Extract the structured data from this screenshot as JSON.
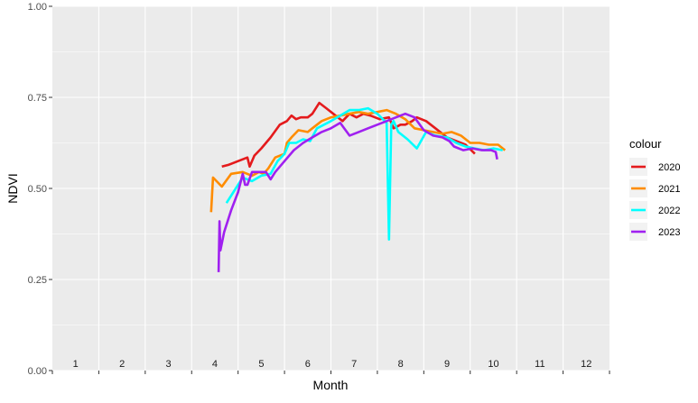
{
  "chart_data": {
    "type": "line",
    "title": "",
    "xlabel": "Month",
    "ylabel": "NDVI",
    "xlim": [
      0.5,
      12.5
    ],
    "ylim": [
      0,
      1
    ],
    "x_ticks": [
      1,
      2,
      3,
      4,
      5,
      6,
      7,
      8,
      9,
      10,
      11,
      12
    ],
    "x_tick_labels": [
      "1",
      "2",
      "3",
      "4",
      "5",
      "6",
      "7",
      "8",
      "9",
      "10",
      "11",
      "12"
    ],
    "y_ticks": [
      0,
      0.25,
      0.5,
      0.75,
      1
    ],
    "y_tick_labels": [
      "0.00",
      "0.25",
      "0.50",
      "0.75",
      "1.00"
    ],
    "grid": true,
    "legend": {
      "title": "colour",
      "position": "right"
    },
    "series": [
      {
        "name": "2020",
        "color": "#e41a1c",
        "x": [
          4.15,
          4.3,
          4.5,
          4.7,
          4.75,
          4.85,
          5.0,
          5.2,
          5.4,
          5.55,
          5.65,
          5.75,
          5.85,
          6.0,
          6.1,
          6.25,
          6.4,
          6.55,
          6.75,
          6.9,
          7.05,
          7.2,
          7.35,
          7.55,
          7.75,
          7.85,
          8.0,
          8.1,
          8.25,
          8.35,
          8.55,
          8.75,
          9.0,
          9.2,
          9.4,
          9.6
        ],
        "y": [
          0.56,
          0.565,
          0.575,
          0.585,
          0.56,
          0.59,
          0.61,
          0.64,
          0.675,
          0.685,
          0.7,
          0.69,
          0.695,
          0.695,
          0.705,
          0.735,
          0.72,
          0.705,
          0.685,
          0.705,
          0.695,
          0.705,
          0.7,
          0.69,
          0.695,
          0.665,
          0.675,
          0.675,
          0.685,
          0.695,
          0.685,
          0.665,
          0.64,
          0.63,
          0.62,
          0.595
        ]
      },
      {
        "name": "2021",
        "color": "#ff8c00",
        "x": [
          3.92,
          3.96,
          4.15,
          4.35,
          4.6,
          4.8,
          4.95,
          5.05,
          5.15,
          5.3,
          5.5,
          5.55,
          5.65,
          5.8,
          6.0,
          6.1,
          6.3,
          6.5,
          6.7,
          6.9,
          7.1,
          7.3,
          7.5,
          7.7,
          7.9,
          8.1,
          8.3,
          8.5,
          8.7,
          8.9,
          9.1,
          9.3,
          9.5,
          9.7,
          9.9,
          10.1,
          10.25
        ],
        "y": [
          0.435,
          0.53,
          0.505,
          0.54,
          0.545,
          0.535,
          0.545,
          0.54,
          0.555,
          0.585,
          0.595,
          0.625,
          0.64,
          0.66,
          0.655,
          0.665,
          0.685,
          0.695,
          0.7,
          0.705,
          0.71,
          0.705,
          0.71,
          0.715,
          0.705,
          0.69,
          0.665,
          0.66,
          0.655,
          0.65,
          0.655,
          0.645,
          0.625,
          0.625,
          0.62,
          0.62,
          0.605
        ]
      },
      {
        "name": "2022",
        "color": "#00ffff",
        "x": [
          4.25,
          4.45,
          4.6,
          4.8,
          5.0,
          5.2,
          5.35,
          5.5,
          5.6,
          5.75,
          5.9,
          6.05,
          6.2,
          6.35,
          6.5,
          6.7,
          6.9,
          7.1,
          7.3,
          7.5,
          7.7,
          7.75,
          7.8,
          7.85,
          7.95,
          8.15,
          8.35,
          8.55,
          8.75,
          9.0,
          9.2,
          9.4,
          9.6,
          9.8,
          10.0,
          10.2
        ],
        "y": [
          0.46,
          0.5,
          0.53,
          0.52,
          0.535,
          0.54,
          0.575,
          0.595,
          0.625,
          0.625,
          0.635,
          0.63,
          0.665,
          0.675,
          0.685,
          0.7,
          0.715,
          0.715,
          0.72,
          0.705,
          0.68,
          0.36,
          0.675,
          0.685,
          0.655,
          0.635,
          0.61,
          0.655,
          0.645,
          0.64,
          0.625,
          0.615,
          0.61,
          0.605,
          0.61,
          0.605
        ]
      },
      {
        "name": "2023",
        "color": "#a020f0",
        "x": [
          4.08,
          4.1,
          4.12,
          4.2,
          4.35,
          4.5,
          4.6,
          4.65,
          4.7,
          4.8,
          4.95,
          5.1,
          5.2,
          5.3,
          5.5,
          5.7,
          5.9,
          6.1,
          6.3,
          6.5,
          6.7,
          6.9,
          7.1,
          7.3,
          7.5,
          7.7,
          7.9,
          8.1,
          8.3,
          8.5,
          8.7,
          8.9,
          9.05,
          9.15,
          9.35,
          9.55,
          9.75,
          9.95,
          10.05,
          10.08
        ],
        "y": [
          0.27,
          0.41,
          0.33,
          0.38,
          0.44,
          0.49,
          0.54,
          0.51,
          0.51,
          0.545,
          0.545,
          0.545,
          0.525,
          0.545,
          0.575,
          0.605,
          0.625,
          0.64,
          0.655,
          0.665,
          0.68,
          0.645,
          0.655,
          0.665,
          0.675,
          0.685,
          0.695,
          0.705,
          0.695,
          0.66,
          0.645,
          0.64,
          0.63,
          0.615,
          0.605,
          0.61,
          0.605,
          0.605,
          0.6,
          0.58
        ]
      }
    ]
  }
}
